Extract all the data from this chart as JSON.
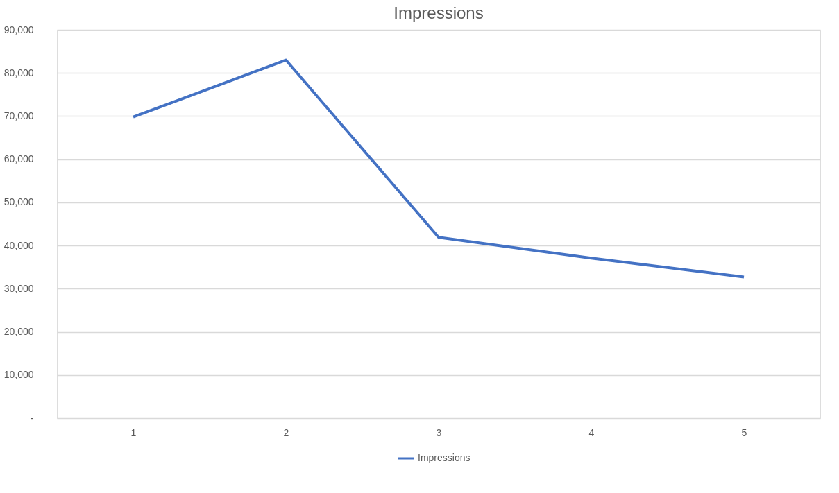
{
  "chart_data": {
    "type": "line",
    "title": "Impressions",
    "categories": [
      "1",
      "2",
      "3",
      "4",
      "5"
    ],
    "series": [
      {
        "name": "Impressions",
        "color": "#4472c4",
        "values": [
          69800,
          83000,
          41900,
          37100,
          32700
        ]
      }
    ],
    "ylim": [
      0,
      90000
    ],
    "yticks": [
      {
        "value": 0,
        "label": "-"
      },
      {
        "value": 10000,
        "label": "10,000"
      },
      {
        "value": 20000,
        "label": "20,000"
      },
      {
        "value": 30000,
        "label": "30,000"
      },
      {
        "value": 40000,
        "label": "40,000"
      },
      {
        "value": 50000,
        "label": "50,000"
      },
      {
        "value": 60000,
        "label": "60,000"
      },
      {
        "value": 70000,
        "label": "70,000"
      },
      {
        "value": 80000,
        "label": "80,000"
      },
      {
        "value": 90000,
        "label": "90,000"
      }
    ],
    "grid": "y",
    "legend": "bottom",
    "marker": "none",
    "line_style": "solid"
  }
}
